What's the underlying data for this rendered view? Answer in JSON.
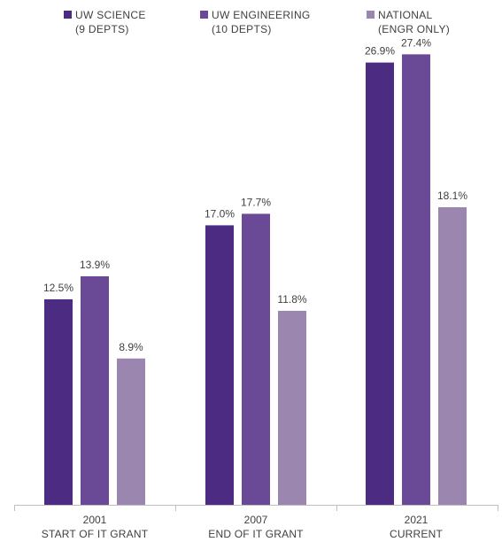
{
  "chart_data": {
    "type": "bar",
    "categories": [
      {
        "year": "2001",
        "label": "START OF IT GRANT"
      },
      {
        "year": "2007",
        "label": "END OF IT GRANT"
      },
      {
        "year": "2021",
        "label": "CURRENT"
      }
    ],
    "series": [
      {
        "name": "UW SCIENCE",
        "sub": "(9 DEPTS)",
        "color": "#4b2c82",
        "values": [
          12.5,
          17.0,
          26.9
        ],
        "labels": [
          "12.5%",
          "17.0%",
          "26.9%"
        ]
      },
      {
        "name": "UW ENGINEERING",
        "sub": "(10 DEPTS)",
        "color": "#6a4a96",
        "values": [
          13.9,
          17.7,
          27.4
        ],
        "labels": [
          "13.9%",
          "17.7%",
          "27.4%"
        ]
      },
      {
        "name": "NATIONAL",
        "sub": "(ENGR ONLY)",
        "color": "#9b86b0",
        "values": [
          8.9,
          11.8,
          18.1
        ],
        "labels": [
          "8.9%",
          "11.8%",
          "18.1%"
        ]
      }
    ],
    "ylim": [
      0,
      30
    ],
    "grid": false,
    "legend_position": "top",
    "title": "",
    "xlabel": "",
    "ylabel": ""
  }
}
